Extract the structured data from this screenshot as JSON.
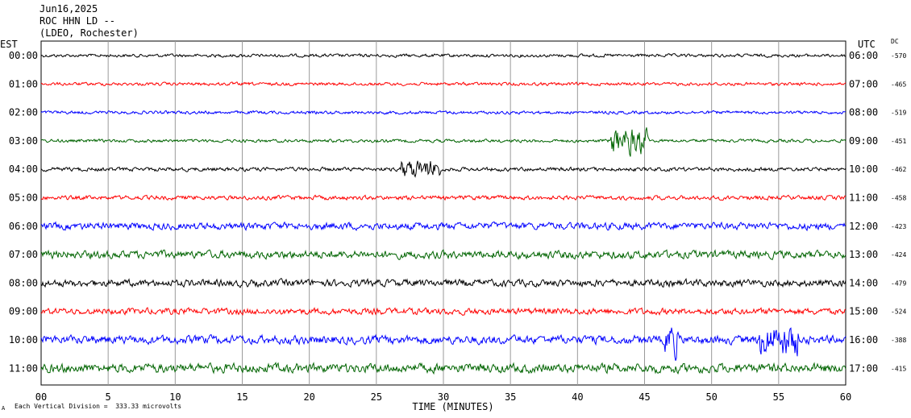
{
  "header": {
    "date": "Jun16,2025",
    "station": "ROC HHN LD --",
    "network": "(LDEO, Rochester)"
  },
  "labels": {
    "left_tz": "EST",
    "right_tz": "UTC",
    "dc": "DC",
    "footer": "Each Vertical Division =  333.33 microvolts",
    "corner_mark": "A"
  },
  "chart_data": {
    "type": "line",
    "title": "",
    "xlabel": "TIME (MINUTES)",
    "xlim": [
      0,
      60
    ],
    "xticks": [
      "00",
      "5",
      "10",
      "15",
      "20",
      "25",
      "30",
      "35",
      "40",
      "45",
      "50",
      "55",
      "60"
    ],
    "grid": true,
    "colors": [
      "#000000",
      "#ff0000",
      "#0000ff",
      "#006400"
    ],
    "rows": [
      {
        "est": "00:00",
        "utc": "06:00",
        "dc": "-570",
        "color": "#000000",
        "noise": 0.9
      },
      {
        "est": "01:00",
        "utc": "07:00",
        "dc": "-465",
        "color": "#ff0000",
        "noise": 0.9
      },
      {
        "est": "02:00",
        "utc": "08:00",
        "dc": "-519",
        "color": "#0000ff",
        "noise": 0.9
      },
      {
        "est": "03:00",
        "utc": "09:00",
        "dc": "-451",
        "color": "#006400",
        "noise": 0.9
      },
      {
        "est": "04:00",
        "utc": "10:00",
        "dc": "-462",
        "color": "#000000",
        "noise": 1.1
      },
      {
        "est": "05:00",
        "utc": "11:00",
        "dc": "-458",
        "color": "#ff0000",
        "noise": 1.2
      },
      {
        "est": "06:00",
        "utc": "12:00",
        "dc": "-423",
        "color": "#0000ff",
        "noise": 2.0
      },
      {
        "est": "07:00",
        "utc": "13:00",
        "dc": "-424",
        "color": "#006400",
        "noise": 2.2
      },
      {
        "est": "08:00",
        "utc": "14:00",
        "dc": "-479",
        "color": "#000000",
        "noise": 2.0
      },
      {
        "est": "09:00",
        "utc": "15:00",
        "dc": "-524",
        "color": "#ff0000",
        "noise": 1.8
      },
      {
        "est": "10:00",
        "utc": "16:00",
        "dc": "-388",
        "color": "#0000ff",
        "noise": 2.4
      },
      {
        "est": "11:00",
        "utc": "17:00",
        "dc": "-415",
        "color": "#006400",
        "noise": 2.6
      }
    ],
    "events": [
      {
        "row": 3,
        "start_min": 42.5,
        "end_min": 45.2,
        "amplitude": 9,
        "color": "#006400"
      },
      {
        "row": 4,
        "start_min": 26.8,
        "end_min": 29.8,
        "amplitude": 5,
        "color": "#000000"
      },
      {
        "row": 10,
        "start_min": 46.5,
        "end_min": 47.5,
        "amplitude": 4,
        "color": "#0000ff"
      },
      {
        "row": 10,
        "start_min": 53.5,
        "end_min": 56.5,
        "amplitude": 4,
        "color": "#0000ff"
      }
    ]
  }
}
